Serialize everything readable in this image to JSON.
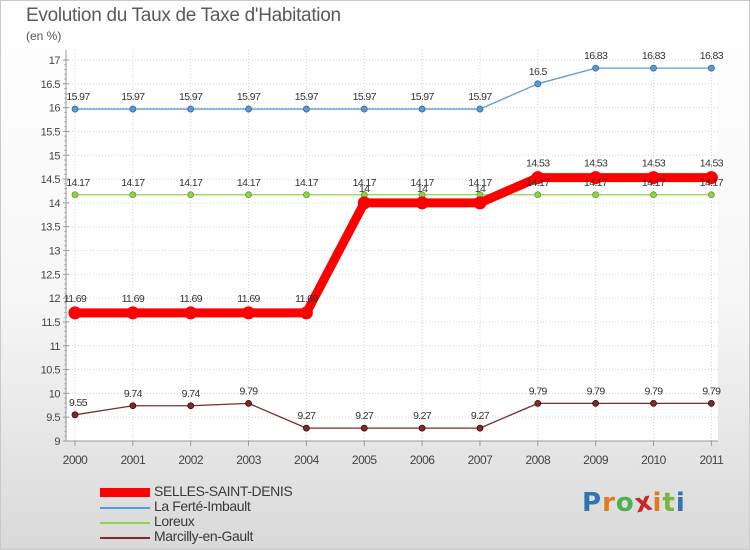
{
  "chart_data": {
    "type": "line",
    "title": "Evolution du Taux de Taxe d'Habitation",
    "unit_label": "(en %)",
    "xlabel": "",
    "ylabel": "",
    "categories": [
      "2000",
      "2001",
      "2002",
      "2003",
      "2004",
      "2005",
      "2006",
      "2007",
      "2008",
      "2009",
      "2010",
      "2011"
    ],
    "ylim": [
      9,
      17
    ],
    "yticks": [
      "9",
      "9.5",
      "10",
      "10.5",
      "11",
      "11.5",
      "12",
      "12.5",
      "13",
      "13.5",
      "14",
      "14.5",
      "15",
      "15.5",
      "16",
      "16.5",
      "17"
    ],
    "series": [
      {
        "name": "SELLES-SAINT-DENIS",
        "color": "#ff0000",
        "values": [
          11.69,
          11.69,
          11.69,
          11.69,
          11.69,
          14,
          14,
          14,
          14.53,
          14.53,
          14.53,
          14.53
        ],
        "labels": [
          "11.69",
          "11.69",
          "11.69",
          "11.69",
          "11.69",
          "14",
          "14",
          "14",
          "14.53",
          "14.53",
          "14.53",
          "14.53"
        ]
      },
      {
        "name": "La Ferté-Imbault",
        "color": "#5b9bd5",
        "values": [
          15.97,
          15.97,
          15.97,
          15.97,
          15.97,
          15.97,
          15.97,
          15.97,
          16.5,
          16.83,
          16.83,
          16.83
        ],
        "labels": [
          "15.97",
          "15.97",
          "15.97",
          "15.97",
          "15.97",
          "15.97",
          "15.97",
          "15.97",
          "16.5",
          "16.83",
          "16.83",
          "16.83"
        ]
      },
      {
        "name": "Loreux",
        "color": "#92d050",
        "values": [
          14.17,
          14.17,
          14.17,
          14.17,
          14.17,
          14.17,
          14.17,
          14.17,
          14.17,
          14.17,
          14.17,
          14.17
        ],
        "labels": [
          "14.17",
          "14.17",
          "14.17",
          "14.17",
          "14.17",
          "14.17",
          "14.17",
          "14.17",
          "14.17",
          "14.17",
          "14.17",
          "14.17"
        ]
      },
      {
        "name": "Marcilly-en-Gault",
        "color": "#7b2c2c",
        "values": [
          9.55,
          9.74,
          9.74,
          9.79,
          9.27,
          9.27,
          9.27,
          9.27,
          9.79,
          9.79,
          9.79,
          9.79
        ],
        "labels": [
          "9.55",
          "9.74",
          "9.74",
          "9.79",
          "9.27",
          "9.27",
          "9.27",
          "9.27",
          "9.79",
          "9.79",
          "9.79",
          "9.79"
        ]
      }
    ],
    "legend_position": "bottom-left"
  },
  "logo": {
    "letters": [
      "P",
      "r",
      "o",
      "x",
      "i",
      "t",
      "i"
    ],
    "colors": [
      "#2e75b6",
      "#e07b1f",
      "#4caf50",
      "#c62828",
      "#e07b1f",
      "#7cb342",
      "#2e75b6"
    ]
  }
}
